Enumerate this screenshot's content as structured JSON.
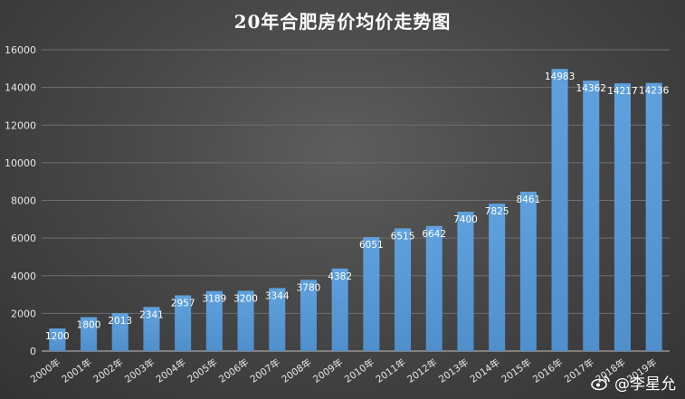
{
  "chart_data": {
    "type": "bar",
    "title": "20年合肥房价均价走势图",
    "xlabel": "",
    "ylabel": "",
    "ylim": [
      0,
      16000
    ],
    "yticks": [
      "0",
      "2000",
      "4000",
      "6000",
      "8000",
      "10000",
      "12000",
      "14000",
      "16000"
    ],
    "categories": [
      "2000年",
      "2001年",
      "2002年",
      "2003年",
      "2004年",
      "2005年",
      "2006年",
      "2007年",
      "2008年",
      "2009年",
      "2010年",
      "2011年",
      "2012年",
      "2013年",
      "2014年",
      "2015年",
      "2016年",
      "2017年",
      "2018年",
      "2019年"
    ],
    "values": [
      1200,
      1800,
      2013,
      2341,
      2957,
      3189,
      3200,
      3344,
      3780,
      4382,
      6051,
      6515,
      6642,
      7400,
      7825,
      8461,
      14983,
      14362,
      14217,
      14236
    ],
    "data_labels": [
      "1200",
      "1800",
      "2013",
      "2341",
      "2957",
      "3189",
      "3200",
      "3344",
      "3780",
      "4382",
      "6051",
      "6515",
      "6642",
      "7400",
      "7825",
      "8461",
      "14983",
      "14362",
      "14217",
      "14236"
    ],
    "grid": true,
    "bar_color": "#5b9bd5",
    "axis_color": "#bfbfbf"
  },
  "watermark": {
    "text": "@李星允",
    "icon": "weibo-icon"
  }
}
